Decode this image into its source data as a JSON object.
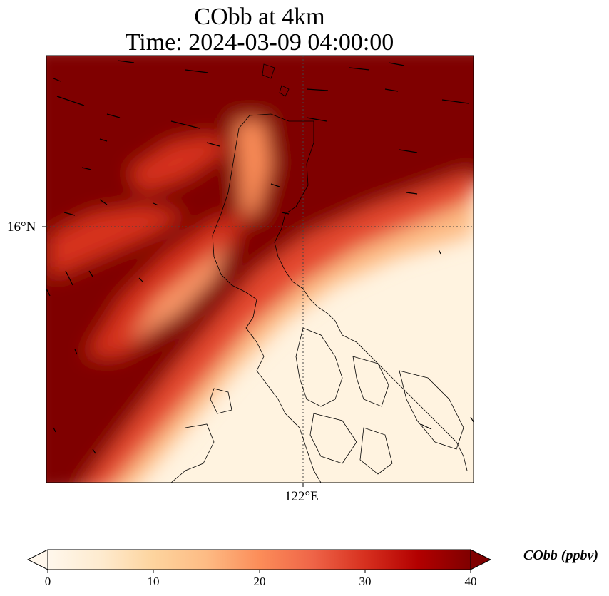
{
  "title": {
    "line1": "CObb at 4km",
    "line2": "Time: 2024-03-09 04:00:00"
  },
  "map": {
    "lat_label": "16°N",
    "lon_label": "122°E",
    "gridlines": "dotted",
    "colormap": "OrRd",
    "colors": {
      "low": "#fff7ec",
      "mid_low": "#fdd49e",
      "mid": "#fc8d59",
      "mid_high": "#d7301f",
      "high": "#7f0000",
      "coastline": "#000000"
    }
  },
  "colorbar": {
    "label": "CObb (ppbv)",
    "min": 0,
    "max": 40,
    "extend": "both",
    "ticks": [
      "0",
      "10",
      "20",
      "30",
      "40"
    ]
  }
}
